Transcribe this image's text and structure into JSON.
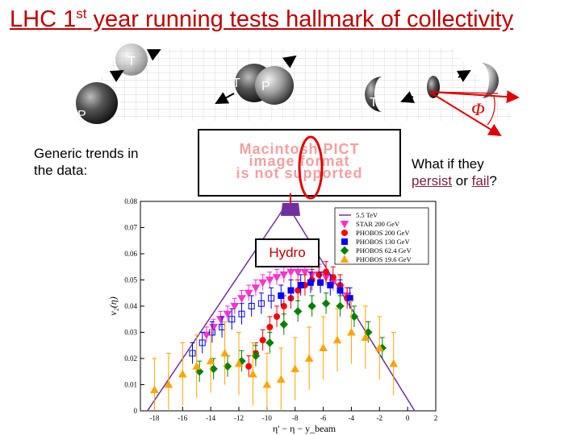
{
  "slide": {
    "title_pre": "LHC 1",
    "title_sup": "st",
    "title_post": " year running tests hallmark of collectivity",
    "left_text": "Generic trends in the data:",
    "right_q1": "What if they",
    "right_persist": "persist",
    "right_or": " or ",
    "right_fail": "fail",
    "right_q2": "?",
    "pict_line1": "Macintosh PICT",
    "pict_line2": "image format",
    "pict_line3": "is not supported",
    "hydro_label": "Hydro",
    "ball_labels": {
      "target": "T",
      "projectile": "P"
    },
    "phi_symbol": "Φ"
  },
  "colors": {
    "title": "#c00000",
    "accent": "#c00000",
    "hydro_line": "#7030a0",
    "star": "#ff33cc",
    "phobos200": "#ff0000",
    "phobos130": "#0000ff",
    "phobos62": "#008000",
    "phobos19": "#ffa500"
  },
  "chart_data": {
    "type": "scatter",
    "xlabel": "η' − η − y_beam",
    "ylabel": "v₂(η)",
    "xlim": [
      -19,
      2
    ],
    "ylim": [
      0,
      0.08
    ],
    "xticks": [
      -18,
      -16,
      -14,
      -12,
      -10,
      -8,
      -6,
      -4,
      -2,
      0,
      2
    ],
    "yticks": [
      0,
      0.01,
      0.02,
      0.03,
      0.04,
      0.05,
      0.06,
      0.07,
      0.08
    ],
    "xtick_labels": [
      "-18",
      "-16",
      "-14",
      "-12",
      "-10",
      "-8",
      "-6",
      "-4",
      "-2",
      "0",
      "2"
    ],
    "ytick_labels": [
      "0",
      "0.01",
      "0.02",
      "0.03",
      "0.04",
      "0.05",
      "0.06",
      "0.07",
      "0.08"
    ],
    "legend_position": "top-right",
    "series": [
      {
        "name": "5.5 TeV",
        "kind": "line",
        "x": [
          -18.5,
          -8.6,
          0.5
        ],
        "y": [
          0.0,
          0.079,
          0.0
        ]
      },
      {
        "name": "STAR 200 GeV",
        "marker": "triangle-down",
        "x": [
          -14.3,
          -13.8,
          -13.3,
          -12.8,
          -12.3,
          -11.8,
          -11.3,
          -10.8,
          -10.3,
          -9.8,
          -9.3,
          -8.8,
          -8.3,
          -7.8,
          -7.3,
          -6.8,
          -6.3,
          -5.8,
          -5.3,
          -4.8,
          -4.3
        ],
        "y": [
          0.029,
          0.032,
          0.035,
          0.037,
          0.04,
          0.043,
          0.045,
          0.047,
          0.049,
          0.05,
          0.051,
          0.052,
          0.053,
          0.053,
          0.053,
          0.052,
          0.052,
          0.051,
          0.049,
          0.047,
          0.044
        ]
      },
      {
        "name": "PHOBOS 200 GeV",
        "marker": "circle",
        "x": [
          -11.3,
          -10.8,
          -10.3,
          -9.8,
          -9.3,
          -8.8,
          -8.3,
          -7.8,
          -7.3,
          -6.8,
          -6.3,
          -5.8,
          -5.3,
          -4.8,
          -4.3
        ],
        "y": [
          0.017,
          0.022,
          0.027,
          0.032,
          0.036,
          0.04,
          0.043,
          0.046,
          0.048,
          0.05,
          0.052,
          0.053,
          0.051,
          0.048,
          0.043
        ]
      },
      {
        "name": "PHOBOS 130 GeV",
        "marker": "square",
        "x": [
          -15.3,
          -14.6,
          -13.9,
          -13.2,
          -12.5,
          -11.8,
          -11.1,
          -10.4,
          -9.7,
          -9.0,
          -8.3,
          -7.6,
          -6.9,
          -6.2,
          -5.5,
          -4.8,
          -4.1
        ],
        "y": [
          0.022,
          0.026,
          0.03,
          0.032,
          0.035,
          0.037,
          0.04,
          0.041,
          0.043,
          0.044,
          0.046,
          0.048,
          0.049,
          0.049,
          0.048,
          0.046,
          0.043
        ]
      },
      {
        "name": "PHOBOS 62.4 GeV",
        "marker": "diamond",
        "x": [
          -14.8,
          -13.8,
          -12.8,
          -11.8,
          -10.8,
          -9.8,
          -8.8,
          -7.8,
          -6.8,
          -5.8,
          -4.8,
          -3.8,
          -2.8,
          -1.8
        ],
        "y": [
          0.015,
          0.016,
          0.017,
          0.019,
          0.021,
          0.026,
          0.033,
          0.038,
          0.04,
          0.041,
          0.04,
          0.036,
          0.03,
          0.024
        ]
      },
      {
        "name": "PHOBOS 19.6 GeV",
        "marker": "triangle-up",
        "x": [
          -18.0,
          -17.0,
          -16.0,
          -15.0,
          -14.0,
          -13.0,
          -12.0,
          -11.0,
          -10.0,
          -9.0,
          -8.0,
          -7.0,
          -6.0,
          -5.0,
          -4.0,
          -3.0,
          -2.0,
          -1.0
        ],
        "y": [
          0.008,
          0.01,
          0.014,
          0.017,
          0.019,
          0.022,
          0.018,
          0.014,
          0.01,
          0.012,
          0.016,
          0.02,
          0.024,
          0.027,
          0.03,
          0.028,
          0.024,
          0.018
        ]
      }
    ]
  }
}
